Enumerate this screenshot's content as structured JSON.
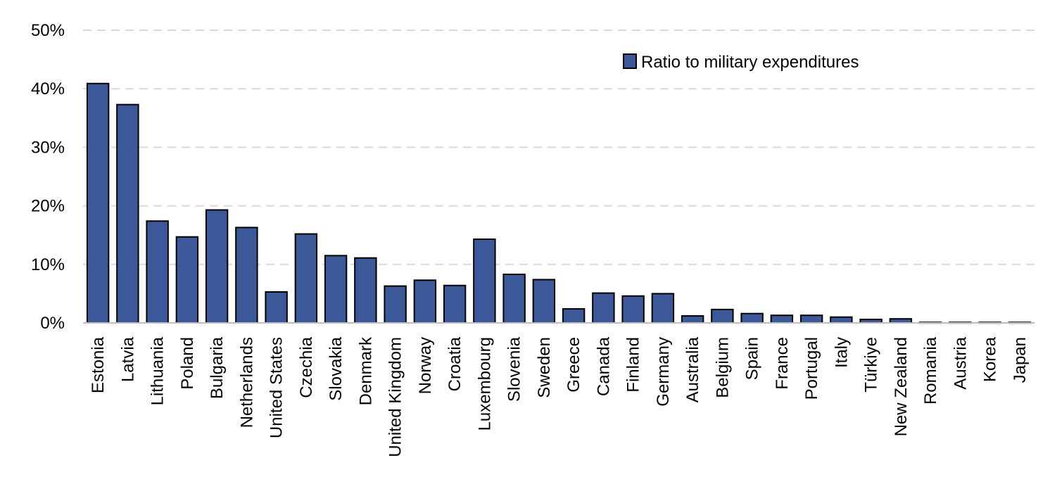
{
  "chart_data": {
    "type": "bar",
    "categories": [
      "Estonia",
      "Latvia",
      "Lithuania",
      "Poland",
      "Bulgaria",
      "Netherlands",
      "United States",
      "Czechia",
      "Slovakia",
      "Denmark",
      "United Kingdom",
      "Norway",
      "Croatia",
      "Luxembourg",
      "Slovenia",
      "Sweden",
      "Greece",
      "Canada",
      "Finland",
      "Germany",
      "Australia",
      "Belgium",
      "Spain",
      "France",
      "Portugal",
      "Italy",
      "Türkiye",
      "New Zealand",
      "Romania",
      "Austria",
      "Korea",
      "Japan"
    ],
    "series": [
      {
        "name": "Ratio to military expenditures",
        "values": [
          40.9,
          37.3,
          17.4,
          14.7,
          19.3,
          16.3,
          5.3,
          15.2,
          11.5,
          11.1,
          6.3,
          7.3,
          6.4,
          14.3,
          8.3,
          7.4,
          2.4,
          5.1,
          4.6,
          5.0,
          1.2,
          2.3,
          1.6,
          1.3,
          1.3,
          1.0,
          0.6,
          0.7,
          0.1,
          0.1,
          0.1,
          0.1
        ]
      }
    ],
    "ylim": [
      0,
      50
    ],
    "yticks": [
      0,
      10,
      20,
      30,
      40,
      50
    ],
    "ytick_labels": [
      "0%",
      "10%",
      "20%",
      "30%",
      "40%",
      "50%"
    ],
    "grid": true,
    "legend_position": "top-right",
    "colors": {
      "bar": "#3b5998",
      "bar_stroke": "#000000",
      "grid": "#d9d9d9"
    }
  }
}
